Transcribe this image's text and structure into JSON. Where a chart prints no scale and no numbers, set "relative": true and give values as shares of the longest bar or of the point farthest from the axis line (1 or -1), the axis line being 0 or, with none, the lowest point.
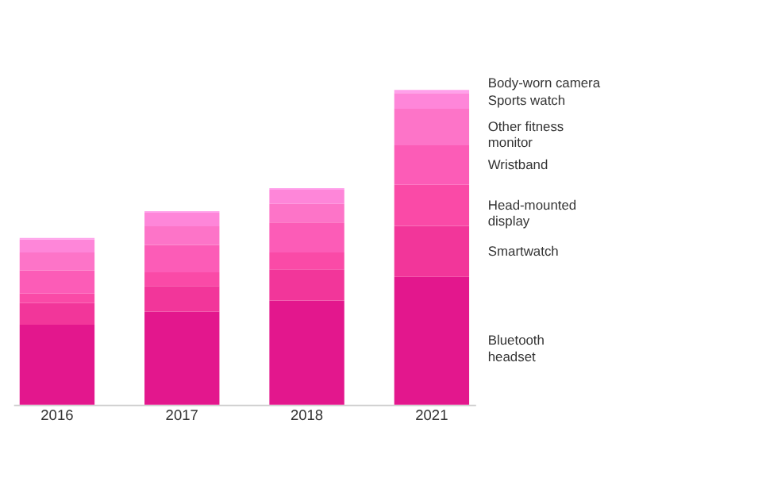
{
  "chart_data": {
    "type": "bar",
    "stacked": true,
    "relative": true,
    "categories": [
      "2016",
      "2017",
      "2018",
      "2021"
    ],
    "series": [
      {
        "name": "Bluetooth headset",
        "color": "#e3178d",
        "values": [
          0.254,
          0.296,
          0.331,
          0.406
        ]
      },
      {
        "name": "Smartwatch",
        "color": "#f2369a",
        "values": [
          0.069,
          0.081,
          0.099,
          0.162
        ]
      },
      {
        "name": "Head-mounted display",
        "color": "#fa4aa7",
        "values": [
          0.03,
          0.044,
          0.054,
          0.131
        ]
      },
      {
        "name": "Wristband",
        "color": "#fc5cb7",
        "values": [
          0.074,
          0.087,
          0.095,
          0.125
        ]
      },
      {
        "name": "Other fitness monitor",
        "color": "#fd74c8",
        "values": [
          0.057,
          0.059,
          0.059,
          0.116
        ]
      },
      {
        "name": "Sports watch",
        "color": "#fe86d9",
        "values": [
          0.041,
          0.043,
          0.045,
          0.05
        ]
      },
      {
        "name": "Body-worn camera",
        "color": "#ffa0ea",
        "values": [
          0.005,
          0.005,
          0.005,
          0.01
        ]
      }
    ]
  }
}
